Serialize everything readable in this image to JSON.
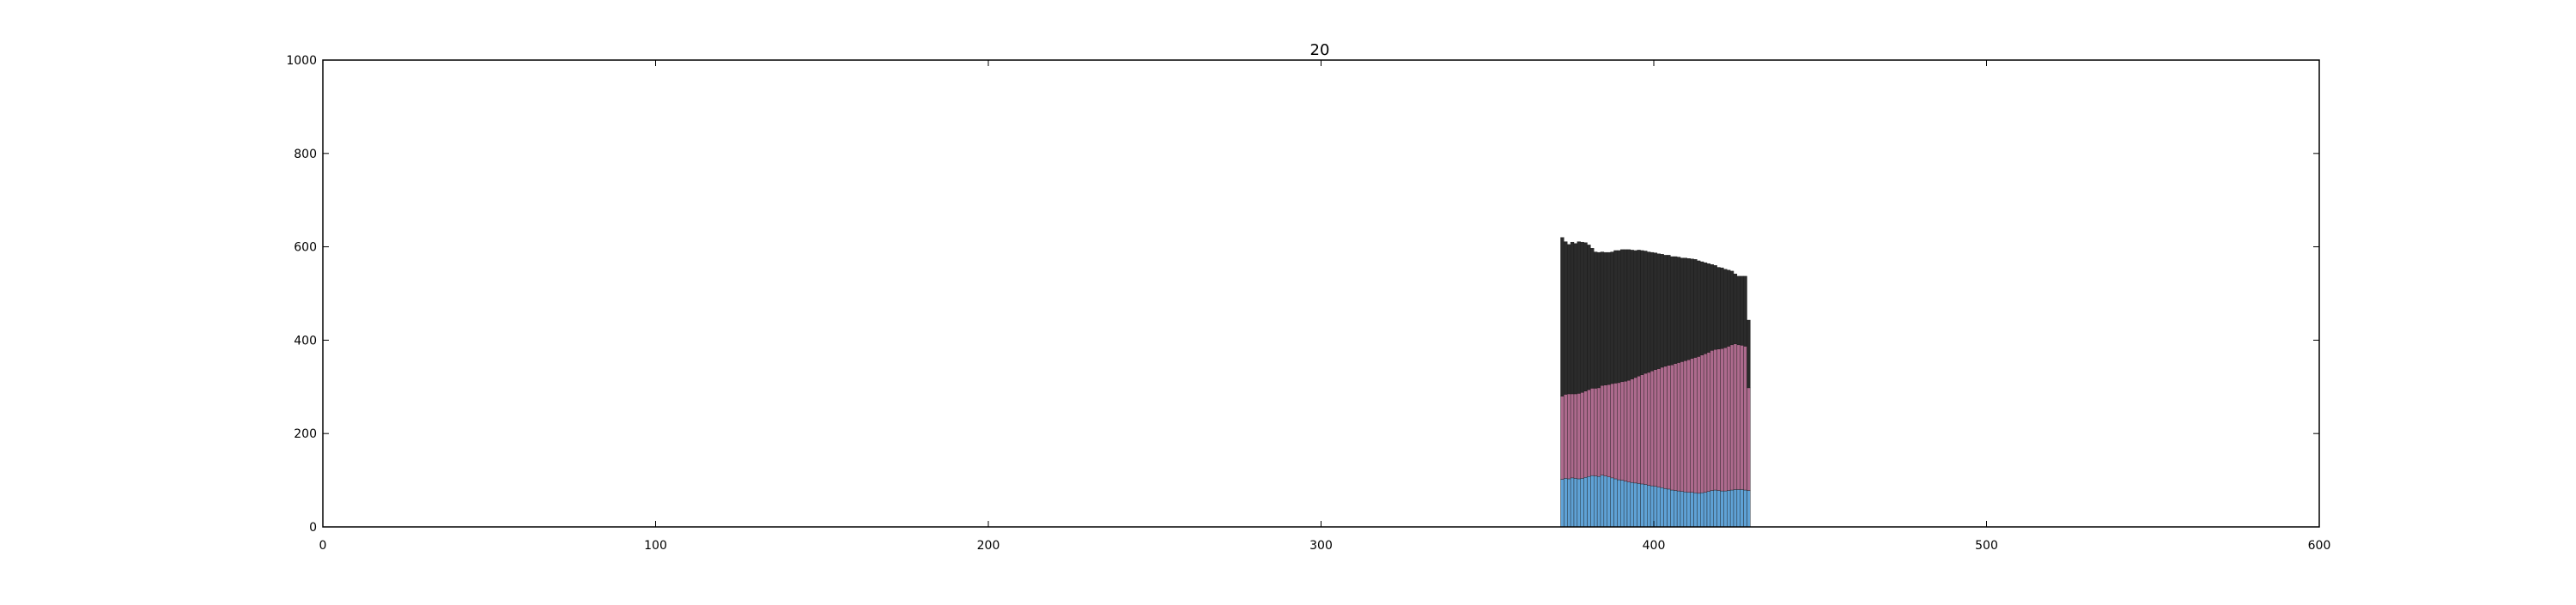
{
  "chart_data": {
    "type": "bar",
    "stacked": true,
    "title": "20",
    "xlabel": "",
    "ylabel": "",
    "xlim": [
      0,
      600
    ],
    "ylim": [
      0,
      1000
    ],
    "xticks": [
      0,
      100,
      200,
      300,
      400,
      500,
      600
    ],
    "yticks": [
      0,
      200,
      400,
      600,
      800,
      1000
    ],
    "grid": false,
    "legend": "none",
    "x": [
      372,
      373,
      374,
      375,
      376,
      377,
      378,
      379,
      380,
      381,
      382,
      383,
      384,
      385,
      386,
      387,
      388,
      389,
      390,
      391,
      392,
      393,
      394,
      395,
      396,
      397,
      398,
      399,
      400,
      401,
      402,
      403,
      404,
      405,
      406,
      407,
      408,
      409,
      410,
      411,
      412,
      413,
      414,
      415,
      416,
      417,
      418,
      419,
      420,
      421,
      422,
      423,
      424,
      425,
      426,
      427,
      428
    ],
    "bar_width": 1,
    "series": [
      {
        "color": "#5fa2d6",
        "values": [
          102,
          104,
          103,
          105,
          104,
          103,
          104,
          106,
          108,
          110,
          109,
          108,
          111,
          109,
          107,
          105,
          103,
          101,
          100,
          98,
          96,
          95,
          94,
          93,
          92,
          91,
          89,
          88,
          87,
          85,
          84,
          82,
          81,
          79,
          78,
          77,
          76,
          75,
          74,
          74,
          73,
          72,
          73,
          74,
          76,
          78,
          79,
          78,
          77,
          77,
          78,
          79,
          80,
          80,
          80,
          79,
          78
        ]
      },
      {
        "color": "#ad6a8d",
        "values": [
          178,
          180,
          182,
          180,
          181,
          183,
          184,
          185,
          186,
          187,
          188,
          190,
          192,
          195,
          198,
          202,
          205,
          208,
          211,
          214,
          218,
          222,
          226,
          230,
          234,
          238,
          242,
          246,
          250,
          254,
          258,
          262,
          265,
          268,
          272,
          275,
          278,
          281,
          284,
          287,
          290,
          293,
          295,
          297,
          298,
          300,
          301,
          303,
          305,
          307,
          309,
          311,
          312,
          310,
          309,
          308,
          220
        ]
      },
      {
        "color": "#2b2b2b",
        "values": [
          340,
          327,
          320,
          325,
          322,
          325,
          322,
          318,
          310,
          300,
          292,
          290,
          286,
          284,
          283,
          282,
          284,
          283,
          283,
          282,
          280,
          276,
          272,
          270,
          266,
          262,
          258,
          254,
          250,
          246,
          242,
          238,
          236,
          232,
          229,
          226,
          222,
          220,
          217,
          213,
          210,
          205,
          200,
          195,
          190,
          184,
          180,
          175,
          173,
          168,
          163,
          158,
          150,
          147,
          148,
          150,
          145
        ]
      }
    ]
  }
}
